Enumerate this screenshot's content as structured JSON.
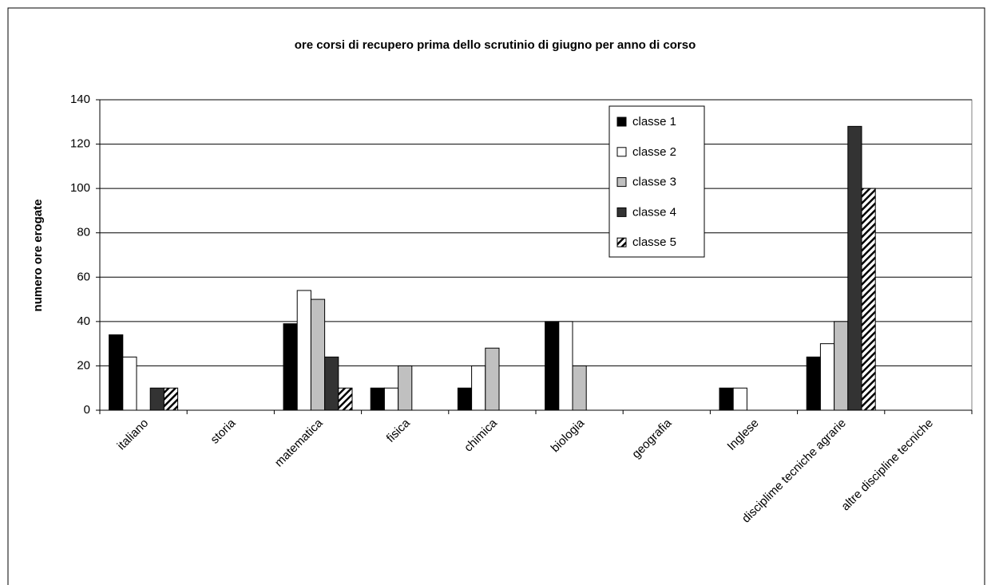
{
  "chart_data": {
    "type": "bar",
    "title": "ore corsi di recupero prima dello scrutinio di giugno per anno di corso",
    "y_label": "numero ore erogate",
    "categories": [
      "italiano",
      "storia",
      "matematica",
      "fisica",
      "chimica",
      "biologia",
      "geografia",
      "Inglese",
      "disciplime tecniche agrarie",
      "altre discipline tecniche"
    ],
    "series": [
      {
        "name": "classe 1",
        "color": "#000000",
        "values": [
          34,
          0,
          39,
          10,
          10,
          40,
          0,
          10,
          24,
          0
        ]
      },
      {
        "name": "classe 2",
        "color": "#ffffff",
        "values": [
          24,
          0,
          54,
          10,
          20,
          40,
          0,
          10,
          30,
          0
        ]
      },
      {
        "name": "classe 3",
        "color": "#c0c0c0",
        "values": [
          0,
          0,
          50,
          20,
          28,
          20,
          0,
          0,
          40,
          0
        ]
      },
      {
        "name": "classe 4",
        "color": "#333333",
        "values": [
          10,
          0,
          24,
          0,
          0,
          0,
          0,
          0,
          128,
          0
        ]
      },
      {
        "name": "classe 5",
        "color": "#000000",
        "hatch": true,
        "values": [
          10,
          0,
          10,
          0,
          0,
          0,
          0,
          0,
          100,
          0
        ]
      }
    ],
    "ylim": [
      0,
      140
    ],
    "yticks": [
      0,
      20,
      40,
      60,
      80,
      100,
      120,
      140
    ],
    "grid": true,
    "legend": "top-right"
  }
}
